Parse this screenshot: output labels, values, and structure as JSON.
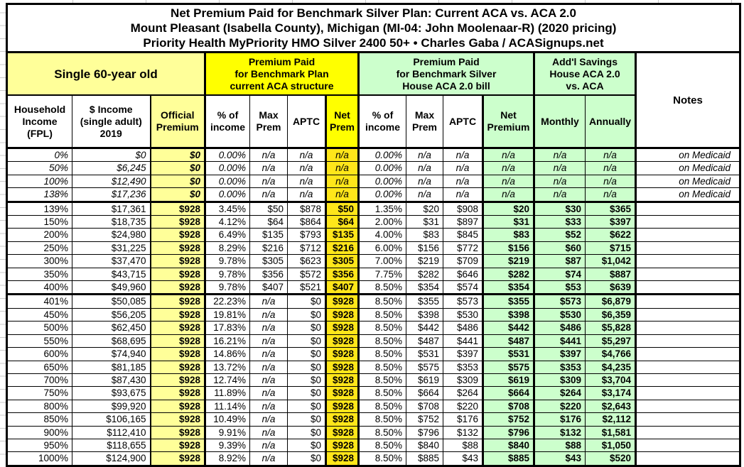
{
  "colors": {
    "light_yellow": "#FFFF99",
    "bright_yellow": "#FFFF00",
    "net_prem_yellow": "#FFE61A",
    "light_green": "#CCFFCC",
    "border": "#000000",
    "gridline_gray": "#C9C9C9"
  },
  "chart_data": {
    "type": "table",
    "title_lines": [
      "Net Premium Paid for Benchmark Silver Plan: Current ACA vs. ACA 2.0",
      "Mount Pleasant (Isabella County), Michigan (MI-04: John Moolenaar-R) (2020 pricing)",
      "Priority Health MyPriority HMO Silver 2400 50+ • Charles Gaba / ACASignups.net"
    ],
    "groups": {
      "demographic": "Single 60-year old",
      "current_aca": "Premium Paid\nfor Benchmark Plan\ncurrent ACA structure",
      "aca20": "Premium Paid\nfor Benchmark Silver\nHouse ACA 2.0 bill",
      "savings": "Add'l Savings\nHouse ACA 2.0\nvs. ACA",
      "notes": "Notes"
    },
    "columns": [
      "Household\nIncome\n(FPL)",
      "$ Income\n(single adult)\n2019",
      "Official\nPremium",
      "% of\nincome",
      "Max\nPrem",
      "APTC",
      "Net\nPrem",
      "% of\nincome",
      "Max\nPrem",
      "APTC",
      "Net\nPremium",
      "Monthly",
      "Annually"
    ],
    "rows": [
      {
        "cells": [
          "0%",
          "$0",
          "$0",
          "0.00%",
          "n/a",
          "n/a",
          "n/a",
          "0.00%",
          "n/a",
          "n/a",
          "n/a",
          "n/a",
          "n/a",
          "on Medicaid"
        ],
        "medicaid": true
      },
      {
        "cells": [
          "50%",
          "$6,245",
          "$0",
          "0.00%",
          "n/a",
          "n/a",
          "n/a",
          "0.00%",
          "n/a",
          "n/a",
          "n/a",
          "n/a",
          "n/a",
          "on Medicaid"
        ],
        "medicaid": true
      },
      {
        "cells": [
          "100%",
          "$12,490",
          "$0",
          "0.00%",
          "n/a",
          "n/a",
          "n/a",
          "0.00%",
          "n/a",
          "n/a",
          "n/a",
          "n/a",
          "n/a",
          "on Medicaid"
        ],
        "medicaid": true
      },
      {
        "cells": [
          "138%",
          "$17,236",
          "$0",
          "0.00%",
          "n/a",
          "n/a",
          "n/a",
          "0.00%",
          "n/a",
          "n/a",
          "n/a",
          "n/a",
          "n/a",
          "on Medicaid"
        ],
        "medicaid": true,
        "sep": true
      },
      {
        "cells": [
          "139%",
          "$17,361",
          "$928",
          "3.45%",
          "$50",
          "$878",
          "$50",
          "1.35%",
          "$20",
          "$908",
          "$20",
          "$30",
          "$365",
          ""
        ]
      },
      {
        "cells": [
          "150%",
          "$18,735",
          "$928",
          "4.12%",
          "$64",
          "$864",
          "$64",
          "2.00%",
          "$31",
          "$897",
          "$31",
          "$33",
          "$397",
          ""
        ]
      },
      {
        "cells": [
          "200%",
          "$24,980",
          "$928",
          "6.49%",
          "$135",
          "$793",
          "$135",
          "4.00%",
          "$83",
          "$845",
          "$83",
          "$52",
          "$622",
          ""
        ]
      },
      {
        "cells": [
          "250%",
          "$31,225",
          "$928",
          "8.29%",
          "$216",
          "$712",
          "$216",
          "6.00%",
          "$156",
          "$772",
          "$156",
          "$60",
          "$715",
          ""
        ]
      },
      {
        "cells": [
          "300%",
          "$37,470",
          "$928",
          "9.78%",
          "$305",
          "$623",
          "$305",
          "7.00%",
          "$219",
          "$709",
          "$219",
          "$87",
          "$1,042",
          ""
        ]
      },
      {
        "cells": [
          "350%",
          "$43,715",
          "$928",
          "9.78%",
          "$356",
          "$572",
          "$356",
          "7.75%",
          "$282",
          "$646",
          "$282",
          "$74",
          "$887",
          ""
        ]
      },
      {
        "cells": [
          "400%",
          "$49,960",
          "$928",
          "9.78%",
          "$407",
          "$521",
          "$407",
          "8.50%",
          "$354",
          "$574",
          "$354",
          "$53",
          "$639",
          ""
        ],
        "sep": true
      },
      {
        "cells": [
          "401%",
          "$50,085",
          "$928",
          "22.23%",
          "n/a",
          "$0",
          "$928",
          "8.50%",
          "$355",
          "$573",
          "$355",
          "$573",
          "$6,879",
          ""
        ]
      },
      {
        "cells": [
          "450%",
          "$56,205",
          "$928",
          "19.81%",
          "n/a",
          "$0",
          "$928",
          "8.50%",
          "$398",
          "$530",
          "$398",
          "$530",
          "$6,359",
          ""
        ]
      },
      {
        "cells": [
          "500%",
          "$62,450",
          "$928",
          "17.83%",
          "n/a",
          "$0",
          "$928",
          "8.50%",
          "$442",
          "$486",
          "$442",
          "$486",
          "$5,828",
          ""
        ]
      },
      {
        "cells": [
          "550%",
          "$68,695",
          "$928",
          "16.21%",
          "n/a",
          "$0",
          "$928",
          "8.50%",
          "$487",
          "$441",
          "$487",
          "$441",
          "$5,297",
          ""
        ]
      },
      {
        "cells": [
          "600%",
          "$74,940",
          "$928",
          "14.86%",
          "n/a",
          "$0",
          "$928",
          "8.50%",
          "$531",
          "$397",
          "$531",
          "$397",
          "$4,766",
          ""
        ]
      },
      {
        "cells": [
          "650%",
          "$81,185",
          "$928",
          "13.72%",
          "n/a",
          "$0",
          "$928",
          "8.50%",
          "$575",
          "$353",
          "$575",
          "$353",
          "$4,235",
          ""
        ]
      },
      {
        "cells": [
          "700%",
          "$87,430",
          "$928",
          "12.74%",
          "n/a",
          "$0",
          "$928",
          "8.50%",
          "$619",
          "$309",
          "$619",
          "$309",
          "$3,704",
          ""
        ]
      },
      {
        "cells": [
          "750%",
          "$93,675",
          "$928",
          "11.89%",
          "n/a",
          "$0",
          "$928",
          "8.50%",
          "$664",
          "$264",
          "$664",
          "$264",
          "$3,174",
          ""
        ]
      },
      {
        "cells": [
          "800%",
          "$99,920",
          "$928",
          "11.14%",
          "n/a",
          "$0",
          "$928",
          "8.50%",
          "$708",
          "$220",
          "$708",
          "$220",
          "$2,643",
          ""
        ]
      },
      {
        "cells": [
          "850%",
          "$106,165",
          "$928",
          "10.49%",
          "n/a",
          "$0",
          "$928",
          "8.50%",
          "$752",
          "$176",
          "$752",
          "$176",
          "$2,112",
          ""
        ]
      },
      {
        "cells": [
          "900%",
          "$112,410",
          "$928",
          "9.91%",
          "n/a",
          "$0",
          "$928",
          "8.50%",
          "$796",
          "$132",
          "$796",
          "$132",
          "$1,581",
          ""
        ]
      },
      {
        "cells": [
          "950%",
          "$118,655",
          "$928",
          "9.39%",
          "n/a",
          "$0",
          "$928",
          "8.50%",
          "$840",
          "$88",
          "$840",
          "$88",
          "$1,050",
          ""
        ]
      },
      {
        "cells": [
          "1000%",
          "$124,900",
          "$928",
          "8.92%",
          "n/a",
          "$0",
          "$928",
          "8.50%",
          "$885",
          "$43",
          "$885",
          "$43",
          "$520",
          ""
        ]
      }
    ]
  }
}
